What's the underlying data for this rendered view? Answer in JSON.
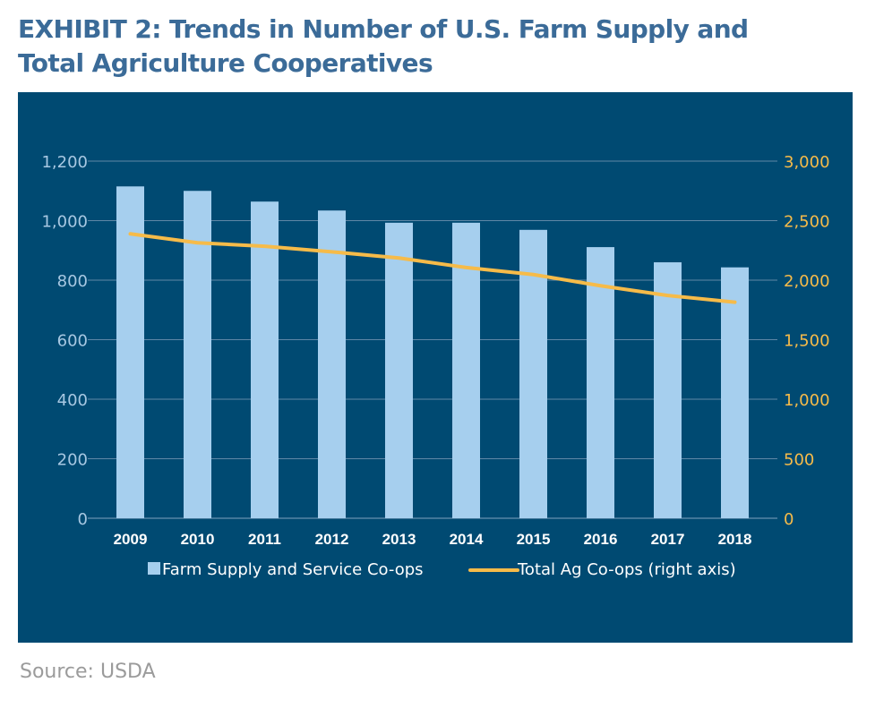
{
  "title_line1": "EXHIBIT 2: Trends in Number of U.S. Farm Supply and",
  "title_line2": "Total Agriculture Cooperatives",
  "source": "Source: USDA",
  "colors": {
    "panel_bg": "#004a72",
    "bar": "#a6cfee",
    "line": "#f6bb49",
    "left_axis_text": "#a8c8e2",
    "right_axis_text": "#f6bb49",
    "grid": "#5f88a7"
  },
  "chart_data": {
    "type": "bar",
    "categories": [
      "2009",
      "2010",
      "2011",
      "2012",
      "2013",
      "2014",
      "2015",
      "2016",
      "2017",
      "2018"
    ],
    "series": [
      {
        "name": "Farm Supply and Service Co-ops",
        "type": "bar",
        "axis": "left",
        "values": [
          1115,
          1100,
          1064,
          1034,
          993,
          993,
          969,
          911,
          860,
          843
        ]
      },
      {
        "name": "Total Ag Co-ops (right axis)",
        "type": "line",
        "axis": "right",
        "values": [
          2389,
          2314,
          2285,
          2238,
          2186,
          2106,
          2047,
          1953,
          1871,
          1815
        ]
      }
    ],
    "y_left": {
      "range": [
        0,
        1200
      ],
      "ticks": [
        "0",
        "200",
        "400",
        "600",
        "800",
        "1,000",
        "1,200"
      ]
    },
    "y_right": {
      "range": [
        0,
        3000
      ],
      "ticks": [
        "0",
        "500",
        "1,000",
        "1,500",
        "2,000",
        "2,500",
        "3,000"
      ]
    },
    "grid": true,
    "legend_position": "bottom"
  }
}
